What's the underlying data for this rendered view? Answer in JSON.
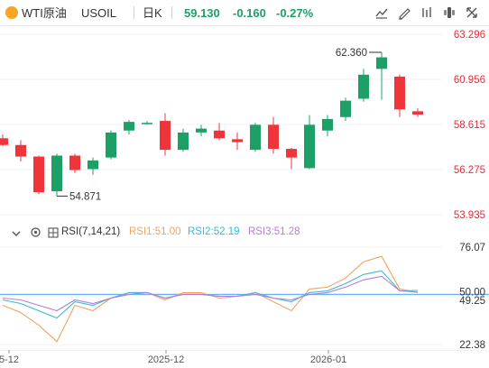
{
  "toolbar": {
    "symbol_name": "WTI原油",
    "symbol_code": "USOIL",
    "period": "日K",
    "price": "59.130",
    "change": "-0.160",
    "change_pct": "-0.27%",
    "icons": [
      "indicator-icon",
      "draw-icon",
      "compare-icon",
      "settings-icon",
      "fullscreen-icon"
    ]
  },
  "colors": {
    "up": "#f0343c",
    "down": "#1da067",
    "rsi1": "#f2a35e",
    "rsi2": "#3bb8d6",
    "rsi3": "#b57dd6",
    "baseline": "#66b3ff"
  },
  "rsi": {
    "title": "RSI(7,14,21)",
    "rsi1_label": "RSI1:51.00",
    "rsi2_label": "RSI2:52.19",
    "rsi3_label": "RSI3:51.28"
  },
  "chart_data": [
    {
      "type": "candlestick",
      "title": "",
      "y_ticks": [
        "63.296",
        "60.956",
        "58.615",
        "56.275",
        "53.935"
      ],
      "ylim": [
        53.935,
        63.296
      ],
      "x_ticks": [
        "5-12",
        "2025-12",
        "2026-01"
      ],
      "annotations": {
        "high_label": "62.360",
        "low_label": "54.871"
      },
      "candles": [
        {
          "o": 57.9,
          "h": 58.1,
          "l": 57.5,
          "c": 57.55
        },
        {
          "o": 57.55,
          "h": 57.8,
          "l": 56.7,
          "c": 56.95
        },
        {
          "o": 56.95,
          "h": 57.0,
          "l": 55.0,
          "c": 55.1
        },
        {
          "o": 55.15,
          "h": 57.1,
          "l": 54.9,
          "c": 57.0
        },
        {
          "o": 57.0,
          "h": 57.1,
          "l": 56.1,
          "c": 56.25
        },
        {
          "o": 56.3,
          "h": 56.9,
          "l": 56.0,
          "c": 56.75
        },
        {
          "o": 56.9,
          "h": 58.3,
          "l": 56.8,
          "c": 58.2
        },
        {
          "o": 58.3,
          "h": 58.85,
          "l": 58.1,
          "c": 58.75
        },
        {
          "o": 58.7,
          "h": 58.8,
          "l": 58.6,
          "c": 58.7
        },
        {
          "o": 58.8,
          "h": 59.2,
          "l": 57.0,
          "c": 57.3
        },
        {
          "o": 57.3,
          "h": 58.4,
          "l": 57.2,
          "c": 58.2
        },
        {
          "o": 58.2,
          "h": 58.6,
          "l": 58.0,
          "c": 58.4
        },
        {
          "o": 58.3,
          "h": 58.7,
          "l": 57.8,
          "c": 57.9
        },
        {
          "o": 57.85,
          "h": 58.2,
          "l": 57.3,
          "c": 57.7
        },
        {
          "o": 57.3,
          "h": 58.7,
          "l": 57.2,
          "c": 58.6
        },
        {
          "o": 58.6,
          "h": 59.0,
          "l": 57.1,
          "c": 57.35
        },
        {
          "o": 57.35,
          "h": 57.4,
          "l": 56.3,
          "c": 56.9
        },
        {
          "o": 56.35,
          "h": 59.1,
          "l": 56.3,
          "c": 58.6
        },
        {
          "o": 58.3,
          "h": 59.1,
          "l": 58.0,
          "c": 58.9
        },
        {
          "o": 59.0,
          "h": 60.0,
          "l": 58.8,
          "c": 59.85
        },
        {
          "o": 59.95,
          "h": 61.5,
          "l": 59.8,
          "c": 61.2
        },
        {
          "o": 61.5,
          "h": 62.36,
          "l": 59.9,
          "c": 62.1
        },
        {
          "o": 61.1,
          "h": 61.2,
          "l": 59.0,
          "c": 59.4
        },
        {
          "o": 59.3,
          "h": 59.45,
          "l": 59.0,
          "c": 59.13
        }
      ]
    },
    {
      "type": "line",
      "title": "",
      "y_ticks": [
        "76.07",
        "50.00",
        "49.25",
        "22.38"
      ],
      "ylim": [
        22.38,
        76.07
      ],
      "baseline": 50.0,
      "series": [
        {
          "name": "RSI1",
          "values": [
            44,
            40,
            33,
            24,
            44,
            41,
            48,
            51,
            51,
            47,
            51,
            51,
            48,
            49,
            51,
            46,
            41,
            53,
            54,
            59,
            68,
            71,
            53,
            51
          ]
        },
        {
          "name": "RSI2",
          "values": [
            47,
            45,
            41,
            37,
            46,
            44,
            48,
            51,
            51,
            48,
            50,
            50,
            49,
            49,
            51,
            48,
            46,
            51,
            52,
            56,
            61,
            63,
            52,
            52.19
          ]
        },
        {
          "name": "RSI3",
          "values": [
            48,
            47,
            44,
            41,
            47,
            45,
            48,
            50,
            51,
            48,
            50,
            50,
            49,
            49,
            50,
            48,
            47,
            50,
            51,
            54,
            58,
            60,
            52,
            51.28
          ]
        }
      ]
    }
  ]
}
